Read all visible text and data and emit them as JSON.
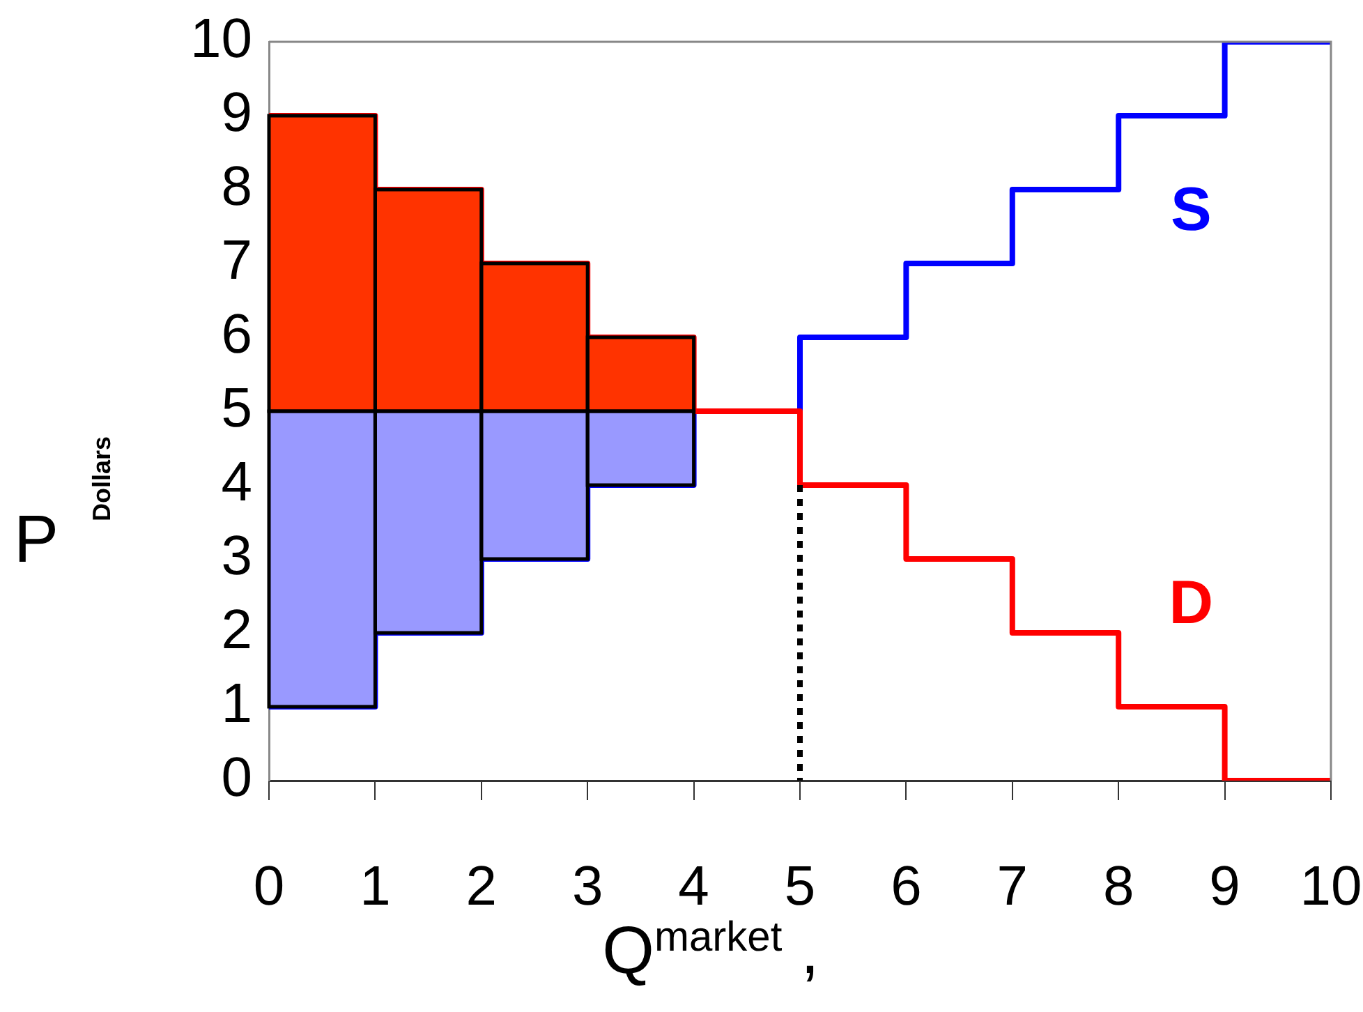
{
  "chart_data": {
    "type": "bar",
    "xlabel": "Q$^{market}$ ,",
    "ylabel": "P$_{Dollars}$",
    "xlim": [
      0,
      10
    ],
    "xticks": [
      0,
      1,
      2,
      3,
      4,
      5,
      6,
      7,
      8,
      9,
      10
    ],
    "ylim": [
      0,
      10
    ],
    "yticks": [
      0,
      1,
      2,
      3,
      4,
      5,
      6,
      7,
      8,
      9,
      10
    ],
    "grid": false,
    "legend": false,
    "series": [
      {
        "color": "#ff3300",
        "x": [
          0.5,
          1.5,
          2.5,
          3.5
        ],
        "base": [
          5,
          5,
          5,
          5
        ],
        "values": [
          4,
          3,
          2,
          1
        ]
      },
      {
        "color": "#9999ff",
        "x": [
          0.5,
          1.5,
          2.5,
          3.5
        ],
        "base": [
          1,
          2,
          3,
          4
        ],
        "values": [
          4,
          3,
          2,
          1
        ]
      },
      {
        "type": "step",
        "name": "S",
        "color": "#0000ff",
        "x": [
          0,
          1,
          2,
          3,
          4,
          5,
          6,
          7,
          8,
          9,
          10
        ],
        "values": [
          1,
          2,
          3,
          4,
          5,
          6,
          7,
          8,
          9,
          10,
          10
        ]
      },
      {
        "type": "step",
        "name": "D",
        "color": "#ff0000",
        "x": [
          0,
          1,
          2,
          3,
          4,
          5,
          6,
          7,
          8,
          9,
          10
        ],
        "values": [
          9,
          8,
          7,
          6,
          5,
          4,
          3,
          2,
          1,
          0,
          0
        ]
      },
      {
        "type": "line",
        "color": "#000000",
        "line_style": "dotted",
        "x": [
          5,
          5
        ],
        "values": [
          4,
          0
        ]
      }
    ]
  }
}
